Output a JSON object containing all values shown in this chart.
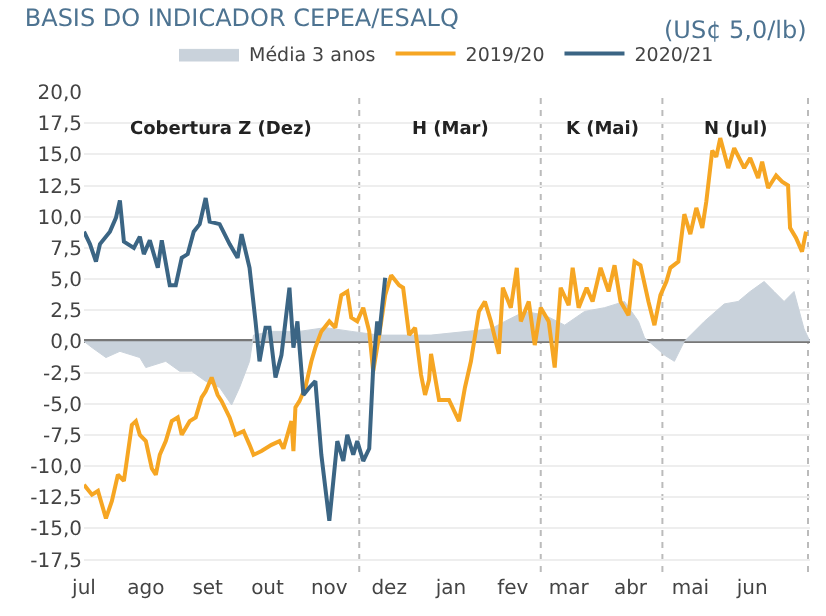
{
  "chart_data": {
    "type": "line",
    "title": "BASIS DO INDICADOR CEPEA/ESALQ",
    "subtitle": "(US¢ 5,0/lb)",
    "series": [
      {
        "name": "Média 3 anos",
        "type": "area",
        "color": "#c9d2db",
        "x": [
          "2020-07-01",
          "2020-07-05",
          "2020-07-12",
          "2020-07-19",
          "2020-07-29",
          "2020-08-01",
          "2020-08-11",
          "2020-08-18",
          "2020-08-24",
          "2020-08-31",
          "2020-09-07",
          "2020-09-13",
          "2020-09-17",
          "2020-09-22",
          "2020-09-24",
          "2020-10-03",
          "2020-10-17",
          "2020-10-30",
          "2020-11-12",
          "2020-11-26",
          "2020-12-09",
          "2020-12-22",
          "2021-01-21",
          "2021-01-28",
          "2021-02-07",
          "2021-02-17",
          "2021-02-27",
          "2021-03-09",
          "2021-03-19",
          "2021-03-29",
          "2021-04-05",
          "2021-04-08",
          "2021-04-18",
          "2021-04-23",
          "2021-04-28",
          "2021-05-08",
          "2021-05-18",
          "2021-05-25",
          "2021-05-31",
          "2021-06-07",
          "2021-06-12",
          "2021-06-17",
          "2021-06-22",
          "2021-06-27",
          "2021-06-30"
        ],
        "values": [
          0,
          -0.5,
          -1.3,
          -0.8,
          -1.3,
          -2.1,
          -1.6,
          -2.4,
          -2.4,
          -3.2,
          -3.7,
          -5.1,
          -3.7,
          -1.6,
          0.5,
          0.8,
          0.8,
          1.1,
          0.8,
          0.5,
          0.5,
          0.5,
          1.0,
          1.6,
          2.4,
          2.1,
          1.3,
          2.4,
          2.7,
          3.2,
          1.6,
          0.3,
          -1.1,
          -1.6,
          0,
          1.6,
          3.0,
          3.2,
          4.0,
          4.8,
          4.0,
          3.2,
          4.0,
          1.0,
          0
        ]
      },
      {
        "name": "2019/20",
        "color": "#f6a623",
        "x": [
          "2020-07-01",
          "2020-07-05",
          "2020-07-08",
          "2020-07-12",
          "2020-07-15",
          "2020-07-18",
          "2020-07-21",
          "2020-07-25",
          "2020-07-27",
          "2020-07-29",
          "2020-08-01",
          "2020-08-04",
          "2020-08-06",
          "2020-08-08",
          "2020-08-11",
          "2020-08-14",
          "2020-08-17",
          "2020-08-19",
          "2020-08-23",
          "2020-08-26",
          "2020-08-29",
          "2020-08-31",
          "2020-09-03",
          "2020-09-06",
          "2020-09-08",
          "2020-09-12",
          "2020-09-15",
          "2020-09-19",
          "2020-09-22",
          "2020-09-24",
          "2020-09-28",
          "2020-10-03",
          "2020-10-07",
          "2020-10-09",
          "2020-10-13",
          "2020-10-14",
          "2020-10-15",
          "2020-10-17",
          "2020-10-20",
          "2020-10-23",
          "2020-10-25",
          "2020-10-28",
          "2020-11-01",
          "2020-11-04",
          "2020-11-07",
          "2020-11-10",
          "2020-11-12",
          "2020-11-15",
          "2020-11-18",
          "2020-11-21",
          "2020-11-23",
          "2020-11-26",
          "2020-11-29",
          "2020-12-02",
          "2020-12-06",
          "2020-12-08",
          "2020-12-11",
          "2020-12-14",
          "2020-12-17",
          "2020-12-19",
          "2020-12-21",
          "2020-12-22",
          "2020-12-26",
          "2020-12-31",
          "2021-01-05",
          "2021-01-08",
          "2021-01-11",
          "2021-01-15",
          "2021-01-18",
          "2021-01-21",
          "2021-01-25",
          "2021-01-27",
          "2021-01-31",
          "2021-02-03",
          "2021-02-05",
          "2021-02-09",
          "2021-02-12",
          "2021-02-15",
          "2021-02-19",
          "2021-02-22",
          "2021-02-25",
          "2021-03-01",
          "2021-03-03",
          "2021-03-06",
          "2021-03-10",
          "2021-03-13",
          "2021-03-17",
          "2021-03-21",
          "2021-03-24",
          "2021-03-27",
          "2021-03-31",
          "2021-04-03",
          "2021-04-06",
          "2021-04-10",
          "2021-04-13",
          "2021-04-16",
          "2021-04-19",
          "2021-04-21",
          "2021-04-25",
          "2021-04-28",
          "2021-05-01",
          "2021-05-04",
          "2021-05-07",
          "2021-05-09",
          "2021-05-12",
          "2021-05-14",
          "2021-05-16",
          "2021-05-20",
          "2021-05-23",
          "2021-05-28",
          "2021-05-31",
          "2021-06-04",
          "2021-06-06",
          "2021-06-09",
          "2021-06-13",
          "2021-06-16",
          "2021-06-19",
          "2021-06-20",
          "2021-06-23",
          "2021-06-26",
          "2021-06-28"
        ],
        "values": [
          -11.5,
          -12.3,
          -12.0,
          -14.2,
          -12.8,
          -10.7,
          -11.2,
          -6.7,
          -6.4,
          -7.5,
          -8.0,
          -10.2,
          -10.7,
          -9.1,
          -8.0,
          -6.4,
          -6.1,
          -7.5,
          -6.4,
          -6.1,
          -4.5,
          -4.0,
          -2.9,
          -4.3,
          -4.8,
          -6.1,
          -7.5,
          -7.2,
          -8.3,
          -9.1,
          -8.8,
          -8.3,
          -8.0,
          -8.6,
          -6.4,
          -8.8,
          -5.3,
          -4.8,
          -3.7,
          -1.6,
          -0.5,
          0.8,
          1.6,
          1.1,
          3.7,
          4.0,
          1.9,
          1.6,
          2.7,
          0.8,
          -2.4,
          0.5,
          3.7,
          5.3,
          4.5,
          4.3,
          0.5,
          1.1,
          -2.7,
          -4.3,
          -3.1,
          -1.0,
          -4.7,
          -4.7,
          -6.4,
          -3.7,
          -1.6,
          2.4,
          3.2,
          1.6,
          -1.0,
          4.3,
          2.7,
          5.9,
          1.6,
          3.2,
          -0.3,
          2.7,
          1.6,
          -2.1,
          4.3,
          2.9,
          5.9,
          2.7,
          4.3,
          3.2,
          5.9,
          4.0,
          6.1,
          3.2,
          2.1,
          6.4,
          6.1,
          3.2,
          1.3,
          3.7,
          4.8,
          5.9,
          6.4,
          10.2,
          8.6,
          10.7,
          9.1,
          11.2,
          15.3,
          14.8,
          16.3,
          13.9,
          15.5,
          13.9,
          14.7,
          13.1,
          14.4,
          12.3,
          13.3,
          12.8,
          12.5,
          9.1,
          8.3,
          7.2,
          8.8
        ]
      },
      {
        "name": "2020/21",
        "color": "#3b6584",
        "x": [
          "2020-07-01",
          "2020-07-04",
          "2020-07-07",
          "2020-07-09",
          "2020-07-14",
          "2020-07-17",
          "2020-07-19",
          "2020-07-21",
          "2020-07-26",
          "2020-07-29",
          "2020-07-31",
          "2020-08-03",
          "2020-08-07",
          "2020-08-09",
          "2020-08-13",
          "2020-08-16",
          "2020-08-19",
          "2020-08-22",
          "2020-08-25",
          "2020-08-28",
          "2020-08-31",
          "2020-09-02",
          "2020-09-07",
          "2020-09-12",
          "2020-09-16",
          "2020-09-18",
          "2020-09-22",
          "2020-09-25",
          "2020-09-27",
          "2020-09-30",
          "2020-10-02",
          "2020-10-05",
          "2020-10-08",
          "2020-10-12",
          "2020-10-14",
          "2020-10-16",
          "2020-10-19",
          "2020-10-22",
          "2020-10-25",
          "2020-10-28",
          "2020-11-01",
          "2020-11-03",
          "2020-11-05",
          "2020-11-08",
          "2020-11-10",
          "2020-11-13",
          "2020-11-15",
          "2020-11-18",
          "2020-11-21",
          "2020-11-23",
          "2020-11-25",
          "2020-11-26",
          "2020-11-29"
        ],
        "values": [
          8.8,
          7.8,
          6.4,
          7.8,
          8.8,
          9.9,
          11.3,
          8.0,
          7.5,
          8.4,
          7.0,
          8.1,
          5.9,
          8.1,
          4.5,
          4.5,
          6.7,
          7.0,
          8.8,
          9.4,
          11.5,
          9.6,
          9.4,
          7.8,
          6.7,
          8.6,
          5.9,
          1.6,
          -1.6,
          1.1,
          1.1,
          -2.9,
          -1.1,
          4.3,
          -0.5,
          1.6,
          -4.3,
          -3.7,
          -3.2,
          -9.1,
          -14.4,
          -11.2,
          -8.0,
          -9.6,
          -7.5,
          -9.1,
          -8.0,
          -9.6,
          -8.6,
          -2.1,
          1.6,
          0.5,
          5.1
        ]
      }
    ],
    "xlim": [
      "2020-07-01",
      "2021-06-30"
    ],
    "xticks": [
      {
        "value": "2020-07-01",
        "label": "jul"
      },
      {
        "value": "2020-08-01",
        "label": "ago"
      },
      {
        "value": "2020-09-01",
        "label": "set"
      },
      {
        "value": "2020-10-01",
        "label": "out"
      },
      {
        "value": "2020-11-01",
        "label": "nov"
      },
      {
        "value": "2020-12-01",
        "label": "dez"
      },
      {
        "value": "2021-01-01",
        "label": "jan"
      },
      {
        "value": "2021-02-01",
        "label": "fev"
      },
      {
        "value": "2021-03-01",
        "label": "mar"
      },
      {
        "value": "2021-04-01",
        "label": "abr"
      },
      {
        "value": "2021-05-01",
        "label": "mai"
      },
      {
        "value": "2021-06-01",
        "label": "jun"
      }
    ],
    "ylim": [
      -18.5,
      20
    ],
    "yticks": [
      {
        "value": -17.5,
        "label": "-17,5"
      },
      {
        "value": -15,
        "label": "-15,0"
      },
      {
        "value": -12.5,
        "label": "-12,5"
      },
      {
        "value": -10,
        "label": "-10,0"
      },
      {
        "value": -7.5,
        "label": "-7,5"
      },
      {
        "value": -5,
        "label": "-5,0"
      },
      {
        "value": -2.5,
        "label": "-2,5"
      },
      {
        "value": 0,
        "label": "0,0"
      },
      {
        "value": 2.5,
        "label": "2,5"
      },
      {
        "value": 5,
        "label": "5,0"
      },
      {
        "value": 7.5,
        "label": "7,5"
      },
      {
        "value": 10,
        "label": "10,0"
      },
      {
        "value": 12.5,
        "label": "12,5"
      },
      {
        "value": 15,
        "label": "15,0"
      },
      {
        "value": 17.5,
        "label": "17,5"
      },
      {
        "value": 20,
        "label": "20,0"
      }
    ],
    "ref_lines": [
      {
        "axis": "x",
        "value": "2020-11-16",
        "color": "#bbbbbb",
        "line_style": "dotted"
      },
      {
        "axis": "x",
        "value": "2021-02-15",
        "color": "#bbbbbb",
        "line_style": "dotted"
      },
      {
        "axis": "x",
        "value": "2021-04-17",
        "color": "#bbbbbb",
        "line_style": "dotted"
      },
      {
        "axis": "x",
        "value": "2021-06-29",
        "color": "#bbbbbb",
        "line_style": "dotted"
      }
    ],
    "annotations": [
      "Cobertura Z (Dez)",
      "H (Mar)",
      "K (Mai)",
      "N (Jul)"
    ],
    "grid": "y",
    "legend": "top",
    "line_style": "solid",
    "marker": "none"
  }
}
